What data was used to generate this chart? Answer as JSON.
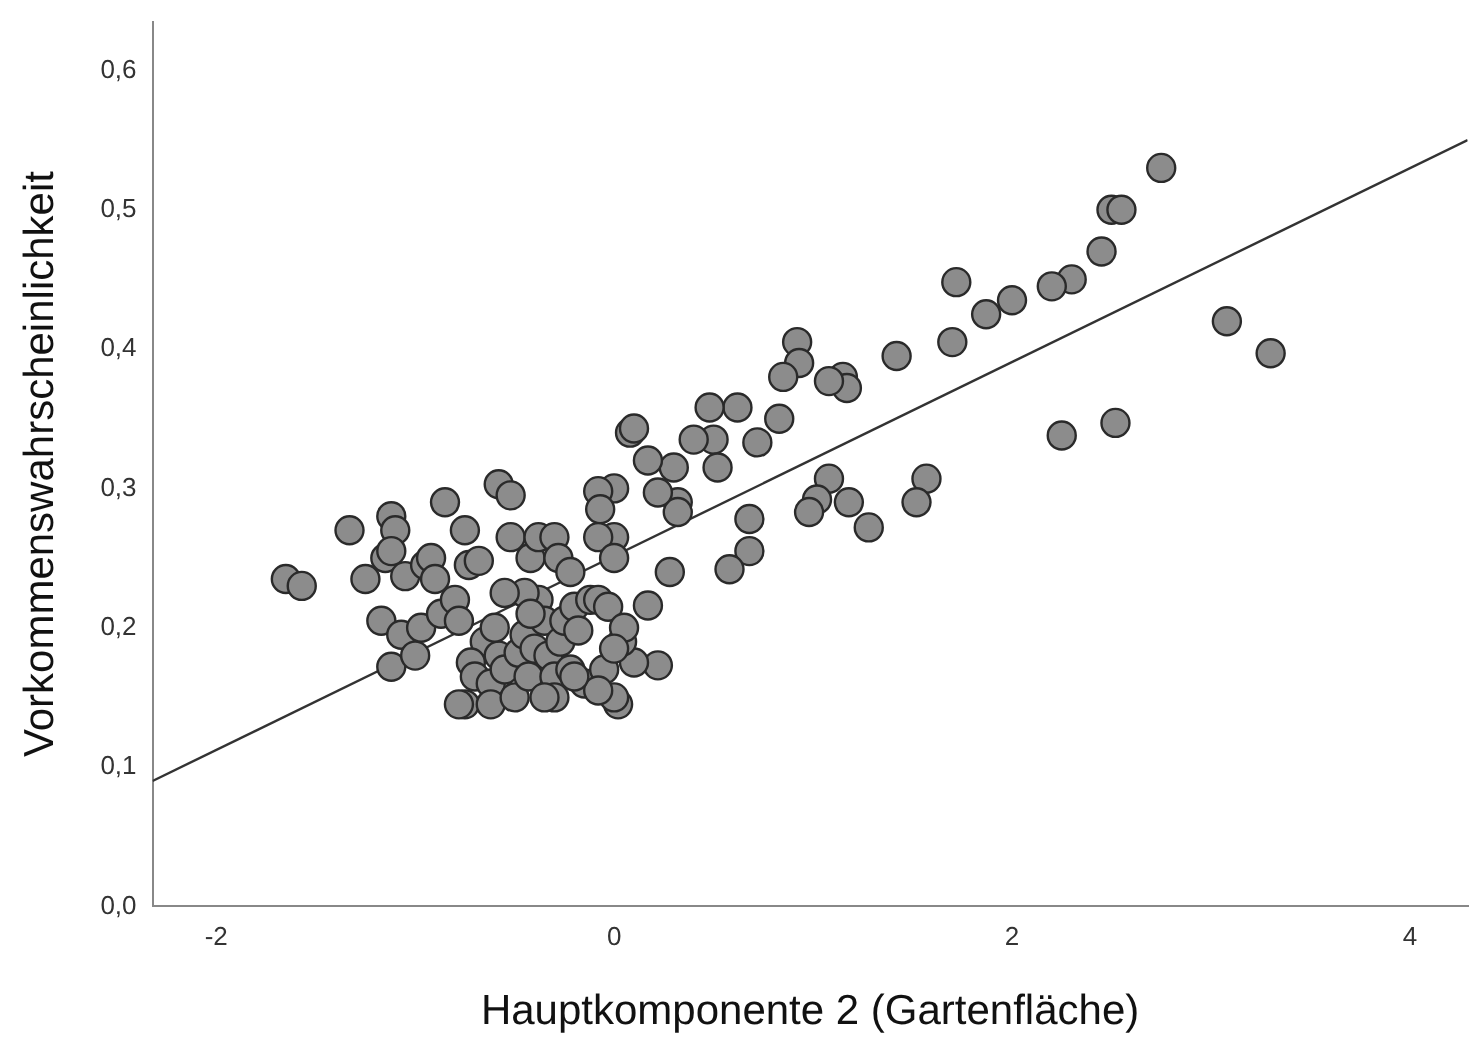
{
  "chart_data": {
    "type": "scatter",
    "xlabel": "Hauptkomponente 2 (Gartenfläche)",
    "ylabel": "Vorkommenswahrscheinlichkeit",
    "xlim": [
      -2.32,
      4.29
    ],
    "ylim": [
      0,
      0.635
    ],
    "xticks": [
      -2,
      0,
      2,
      4
    ],
    "yticks": [
      {
        "value": 0,
        "label": "0,0"
      },
      {
        "value": 0.1,
        "label": "0,1"
      },
      {
        "value": 0.2,
        "label": "0,2"
      },
      {
        "value": 0.3,
        "label": "0,3"
      },
      {
        "value": 0.4,
        "label": "0,4"
      },
      {
        "value": 0.5,
        "label": "0,5"
      },
      {
        "value": 0.6,
        "label": "0,6"
      }
    ],
    "grid": false,
    "legend": false,
    "series": [
      {
        "marker": "circle",
        "color": "#8c8c8c",
        "x": [
          2.75,
          2.5,
          2.55,
          2.45,
          2.3,
          2.2,
          2.0,
          1.87,
          1.72,
          1.7,
          1.42,
          1.15,
          1.17,
          1.08,
          0.92,
          0.93,
          0.85,
          0.83,
          0.72,
          0.62,
          0.48,
          0.5,
          0.52,
          0.4,
          0.3,
          0.32,
          0.32,
          0.22,
          0.17,
          0.08,
          0.1,
          0.0,
          -0.08,
          -0.07,
          0.0,
          -0.08,
          0.0,
          3.08,
          3.3,
          2.25,
          2.52,
          1.57,
          1.52,
          1.28,
          1.18,
          1.08,
          1.02,
          0.98,
          0.68,
          0.68,
          0.58,
          0.28,
          0.17,
          0.22,
          0.1,
          0.04,
          0.02,
          -1.65,
          -1.57,
          -1.33,
          -1.25,
          -1.17,
          -1.15,
          -1.12,
          -1.1,
          -1.12,
          -1.05,
          -1.12,
          -1.07,
          -1.0,
          -0.97,
          -0.95,
          -0.92,
          -0.9,
          -0.87,
          -0.85,
          -0.8,
          -0.78,
          -0.75,
          -0.73,
          -0.68,
          -0.65,
          -0.58,
          -0.52,
          -0.52,
          -0.42,
          -0.38,
          -0.3,
          -0.28,
          -0.22,
          -0.75,
          -0.78,
          -0.72,
          -0.7,
          -0.62,
          -0.62,
          -0.58,
          -0.55,
          -0.5,
          -0.48,
          -0.45,
          -0.43,
          -0.4,
          -0.38,
          -0.35,
          -0.33,
          -0.3,
          -0.3,
          -0.27,
          -0.25,
          -0.22,
          -0.2,
          -0.18,
          -0.15,
          -0.12,
          -0.08,
          -0.05,
          -0.03,
          0.0,
          -0.08,
          -0.45,
          -0.42,
          -0.35,
          -0.2,
          0.05,
          0.0,
          -0.6,
          -0.55
        ],
        "values": [
          0.53,
          0.5,
          0.5,
          0.47,
          0.45,
          0.445,
          0.435,
          0.425,
          0.448,
          0.405,
          0.395,
          0.38,
          0.372,
          0.377,
          0.405,
          0.39,
          0.38,
          0.35,
          0.333,
          0.358,
          0.358,
          0.335,
          0.315,
          0.335,
          0.315,
          0.29,
          0.283,
          0.297,
          0.32,
          0.34,
          0.343,
          0.3,
          0.298,
          0.285,
          0.265,
          0.265,
          0.25,
          0.42,
          0.397,
          0.338,
          0.347,
          0.307,
          0.29,
          0.272,
          0.29,
          0.307,
          0.292,
          0.283,
          0.278,
          0.255,
          0.242,
          0.24,
          0.216,
          0.173,
          0.175,
          0.19,
          0.145,
          0.235,
          0.23,
          0.27,
          0.235,
          0.205,
          0.25,
          0.28,
          0.27,
          0.255,
          0.237,
          0.172,
          0.195,
          0.18,
          0.2,
          0.245,
          0.25,
          0.235,
          0.21,
          0.29,
          0.22,
          0.205,
          0.27,
          0.245,
          0.248,
          0.19,
          0.303,
          0.295,
          0.265,
          0.25,
          0.265,
          0.265,
          0.25,
          0.24,
          0.145,
          0.145,
          0.175,
          0.165,
          0.16,
          0.145,
          0.18,
          0.17,
          0.15,
          0.182,
          0.195,
          0.165,
          0.185,
          0.22,
          0.205,
          0.18,
          0.165,
          0.15,
          0.19,
          0.205,
          0.17,
          0.215,
          0.198,
          0.16,
          0.22,
          0.22,
          0.17,
          0.215,
          0.15,
          0.155,
          0.225,
          0.21,
          0.15,
          0.165,
          0.2,
          0.185,
          0.2,
          0.225
        ]
      },
      {
        "type": "line",
        "color": "#333333",
        "x": [
          -2.32,
          4.29
        ],
        "values": [
          0.09,
          0.55
        ]
      }
    ]
  }
}
